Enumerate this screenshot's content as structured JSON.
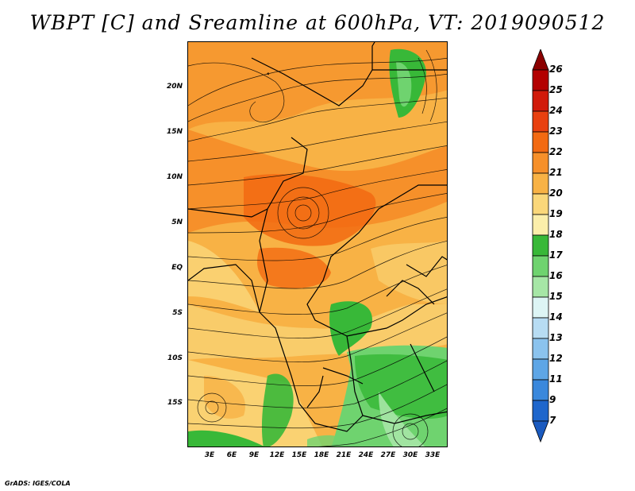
{
  "title": "WBPT [C] and Sreamline at 600hPa, VT: 2019090512",
  "footer": "GrADS: IGES/COLA",
  "map": {
    "lat_labels": [
      "20N",
      "15N",
      "10N",
      "5N",
      "EQ",
      "5S",
      "10S",
      "15S"
    ],
    "lon_labels": [
      "3E",
      "6E",
      "9E",
      "12E",
      "15E",
      "18E",
      "21E",
      "24E",
      "27E",
      "30E",
      "33E"
    ]
  },
  "colorbar": {
    "levels": [
      "26",
      "25",
      "24",
      "23",
      "22",
      "21",
      "20",
      "19",
      "18",
      "17",
      "16",
      "15",
      "14",
      "13",
      "12",
      "11",
      "9",
      "7"
    ],
    "colors": [
      "#8b0000",
      "#b30000",
      "#d11a0a",
      "#e8400f",
      "#f26a12",
      "#f6902a",
      "#f8b245",
      "#fad77a",
      "#fbeeaa",
      "#38b838",
      "#6fd36f",
      "#a6e6a6",
      "#ddf5f5",
      "#b7dcf3",
      "#8bc3ee",
      "#5ea6e6",
      "#3a88dc",
      "#1e66cc",
      "#1a5abf"
    ]
  }
}
